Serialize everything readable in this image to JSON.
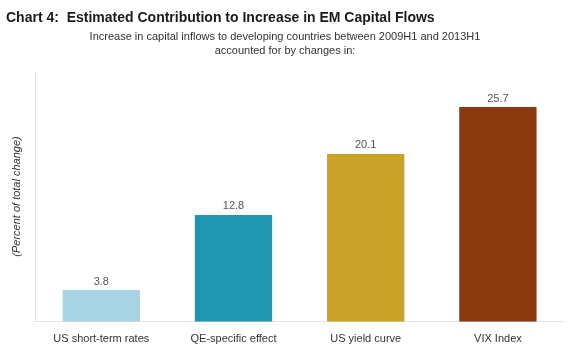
{
  "chart_data": {
    "type": "bar",
    "title": "Chart 4:  Estimated Contribution to Increase in EM Capital Flows",
    "subtitle": "Increase in capital inflows to developing countries between 2009H1 and 2013H1\naccounted for by changes in:",
    "ylabel": "(Percent of total change)",
    "categories": [
      "US short-term rates",
      "QE-specific effect",
      "US yield curve",
      "VIX Index"
    ],
    "values": [
      3.8,
      12.8,
      20.1,
      25.7
    ],
    "colors": [
      "#a8d4e6",
      "#2196b0",
      "#c9a227",
      "#8b3a0f"
    ],
    "ylim": [
      0,
      30
    ],
    "grid": false,
    "data_labels": true,
    "tick_labels": "x"
  }
}
